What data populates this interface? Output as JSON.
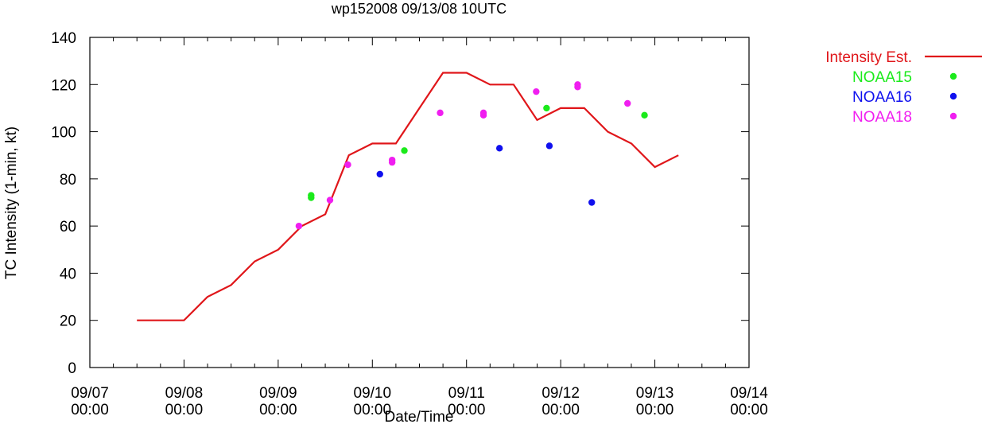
{
  "chart_data": {
    "type": "line",
    "title": "wp152008 09/13/08 10UTC",
    "xlabel": "Date/Time",
    "ylabel": "TC Intensity (1-min, kt)",
    "ylim": [
      0,
      140
    ],
    "yticks": [
      0,
      20,
      40,
      60,
      80,
      100,
      120,
      140
    ],
    "xlim": [
      0,
      7
    ],
    "xunits": "days since 09/07 00:00",
    "xticks": [
      {
        "x": 0,
        "line1": "09/07",
        "line2": "00:00"
      },
      {
        "x": 1,
        "line1": "09/08",
        "line2": "00:00"
      },
      {
        "x": 2,
        "line1": "09/09",
        "line2": "00:00"
      },
      {
        "x": 3,
        "line1": "09/10",
        "line2": "00:00"
      },
      {
        "x": 4,
        "line1": "09/11",
        "line2": "00:00"
      },
      {
        "x": 5,
        "line1": "09/12",
        "line2": "00:00"
      },
      {
        "x": 6,
        "line1": "09/13",
        "line2": "00:00"
      },
      {
        "x": 7,
        "line1": "09/14",
        "line2": "00:00"
      }
    ],
    "grid": false,
    "legend_position": "outside-right",
    "series": [
      {
        "name": "Intensity Est.",
        "style": "line",
        "color": "#e0161a",
        "x": [
          0.5,
          1.0,
          1.25,
          1.5,
          1.75,
          2.0,
          2.25,
          2.5,
          2.5,
          2.75,
          3.0,
          3.25,
          3.5,
          3.75,
          4.0,
          4.25,
          4.5,
          4.75,
          5.0,
          5.25,
          5.5,
          5.75,
          6.0,
          6.25
        ],
        "y": [
          20,
          20,
          30,
          35,
          45,
          50,
          60,
          65,
          65,
          90,
          95,
          95,
          110,
          125,
          125,
          120,
          120,
          105,
          110,
          110,
          100,
          95,
          85,
          90
        ]
      },
      {
        "name": "NOAA15",
        "style": "points",
        "color": "#1bea1b",
        "x": [
          2.35,
          2.35,
          3.34,
          4.85,
          5.89
        ],
        "y": [
          73,
          72,
          92,
          110,
          107
        ]
      },
      {
        "name": "NOAA16",
        "style": "points",
        "color": "#1010ee",
        "x": [
          3.08,
          4.35,
          4.88,
          5.33
        ],
        "y": [
          82,
          93,
          94,
          70
        ]
      },
      {
        "name": "NOAA18",
        "style": "points",
        "color": "#f01ef0",
        "x": [
          2.22,
          2.55,
          2.74,
          3.21,
          3.21,
          3.72,
          4.18,
          4.18,
          4.74,
          5.18,
          5.18,
          5.71
        ],
        "y": [
          60,
          71,
          86,
          88,
          87,
          108,
          108,
          107,
          117,
          120,
          119,
          112
        ]
      }
    ]
  }
}
